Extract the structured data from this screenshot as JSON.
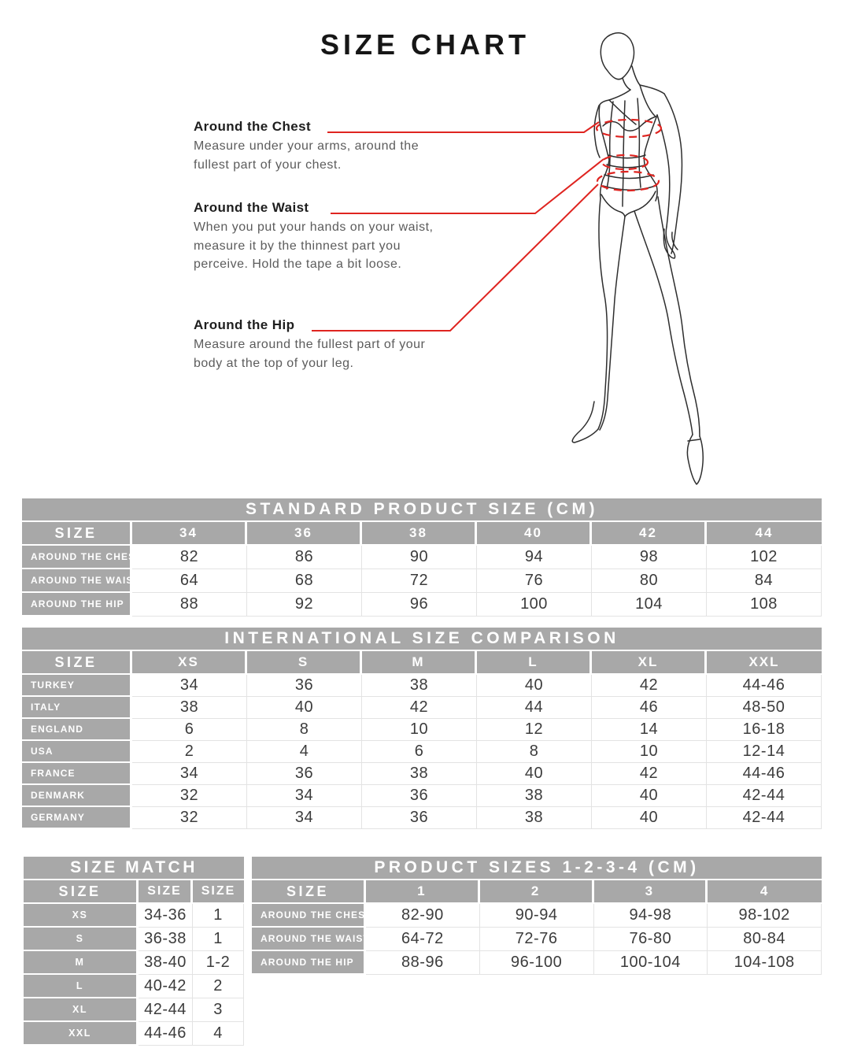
{
  "page": {
    "title": "SIZE CHART"
  },
  "annotations": [
    {
      "heading": "Around the Chest",
      "body": "Measure under your arms, around the\nfullest part of your chest."
    },
    {
      "heading": "Around the Waist",
      "body": "When you put your hands on your waist,\nmeasure it by the thinnest part you\nperceive. Hold the tape a bit loose."
    },
    {
      "heading": "Around the Hip",
      "body": "Measure around the fullest part of your\nbody at the top of your leg."
    }
  ],
  "figure": {
    "description": "fashion-croquis-line-drawing",
    "measure_zones": [
      "chest",
      "waist",
      "hip"
    ]
  },
  "colors": {
    "header_gray": "#a8a8a8",
    "accent_red": "#df2420",
    "line_ink": "#2e2e2e",
    "cell_text": "#3c3c3c"
  },
  "tables": {
    "standard": {
      "title": "STANDARD PRODUCT SIZE (CM)",
      "corner": "SIZE",
      "columns": [
        "34",
        "36",
        "38",
        "40",
        "42",
        "44"
      ],
      "rows": [
        {
          "label": "AROUND THE CHEST",
          "values": [
            "82",
            "86",
            "90",
            "94",
            "98",
            "102"
          ]
        },
        {
          "label": "AROUND THE WAIST",
          "values": [
            "64",
            "68",
            "72",
            "76",
            "80",
            "84"
          ]
        },
        {
          "label": "AROUND THE HIP",
          "values": [
            "88",
            "92",
            "96",
            "100",
            "104",
            "108"
          ]
        }
      ]
    },
    "international": {
      "title": "INTERNATIONAL SIZE COMPARISON",
      "corner": "SIZE",
      "columns": [
        "XS",
        "S",
        "M",
        "L",
        "XL",
        "XXL"
      ],
      "rows": [
        {
          "label": "TURKEY",
          "values": [
            "34",
            "36",
            "38",
            "40",
            "42",
            "44-46"
          ]
        },
        {
          "label": "ITALY",
          "values": [
            "38",
            "40",
            "42",
            "44",
            "46",
            "48-50"
          ]
        },
        {
          "label": "ENGLAND",
          "values": [
            "6",
            "8",
            "10",
            "12",
            "14",
            "16-18"
          ]
        },
        {
          "label": "USA",
          "values": [
            "2",
            "4",
            "6",
            "8",
            "10",
            "12-14"
          ]
        },
        {
          "label": "FRANCE",
          "values": [
            "34",
            "36",
            "38",
            "40",
            "42",
            "44-46"
          ]
        },
        {
          "label": "DENMARK",
          "values": [
            "32",
            "34",
            "36",
            "38",
            "40",
            "42-44"
          ]
        },
        {
          "label": "GERMANY",
          "values": [
            "32",
            "34",
            "36",
            "38",
            "40",
            "42-44"
          ]
        }
      ]
    },
    "size_match": {
      "title": "SIZE MATCH",
      "corner": "SIZE",
      "columns": [
        "SIZE",
        "SIZE"
      ],
      "rows": [
        {
          "label": "XS",
          "values": [
            "34-36",
            "1"
          ]
        },
        {
          "label": "S",
          "values": [
            "36-38",
            "1"
          ]
        },
        {
          "label": "M",
          "values": [
            "38-40",
            "1-2"
          ]
        },
        {
          "label": "L",
          "values": [
            "40-42",
            "2"
          ]
        },
        {
          "label": "XL",
          "values": [
            "42-44",
            "3"
          ]
        },
        {
          "label": "XXL",
          "values": [
            "44-46",
            "4"
          ]
        }
      ]
    },
    "product_sizes": {
      "title": "PRODUCT SIZES 1-2-3-4 (CM)",
      "corner": "SIZE",
      "columns": [
        "1",
        "2",
        "3",
        "4"
      ],
      "rows": [
        {
          "label": "AROUND THE CHEST",
          "values": [
            "82-90",
            "90-94",
            "94-98",
            "98-102"
          ]
        },
        {
          "label": "AROUND THE WAIST",
          "values": [
            "64-72",
            "72-76",
            "76-80",
            "80-84"
          ]
        },
        {
          "label": "AROUND THE HIP",
          "values": [
            "88-96",
            "96-100",
            "100-104",
            "104-108"
          ]
        }
      ]
    }
  }
}
